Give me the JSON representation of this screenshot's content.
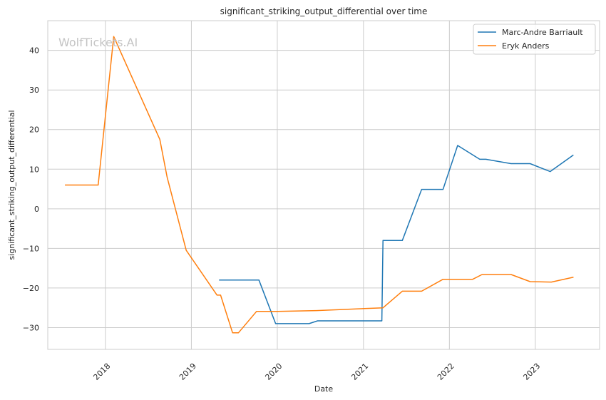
{
  "watermark": "WolfTickets.AI",
  "chart_data": {
    "type": "line",
    "title": "significant_striking_output_differential over time",
    "xlabel": "Date",
    "ylabel": "significant_striking_output_differential",
    "xlim": [
      "2017-05-01",
      "2023-10-01"
    ],
    "ylim": [
      -35.5,
      47.5
    ],
    "x_ticks": [
      "2018-01-01",
      "2019-01-01",
      "2020-01-01",
      "2021-01-01",
      "2022-01-01",
      "2023-01-01"
    ],
    "x_tick_labels": [
      "2018",
      "2019",
      "2020",
      "2021",
      "2022",
      "2023"
    ],
    "y_ticks": [
      -30,
      -20,
      -10,
      0,
      10,
      20,
      30,
      40
    ],
    "y_tick_labels": [
      "−30",
      "−20",
      "−10",
      "0",
      "10",
      "20",
      "30",
      "40"
    ],
    "grid": true,
    "legend_position": "top-right",
    "series": [
      {
        "name": "Marc-Andre Barriault",
        "color": "#1f77b4",
        "points": [
          [
            "2019-05-01",
            -18.0
          ],
          [
            "2019-10-15",
            -18.0
          ],
          [
            "2019-12-25",
            -29.0
          ],
          [
            "2020-05-15",
            -29.0
          ],
          [
            "2020-06-20",
            -28.3
          ],
          [
            "2021-03-20",
            -28.3
          ],
          [
            "2021-03-25",
            -8.0
          ],
          [
            "2021-06-15",
            -8.0
          ],
          [
            "2021-09-05",
            4.9
          ],
          [
            "2021-12-05",
            4.9
          ],
          [
            "2022-02-05",
            16.0
          ],
          [
            "2022-05-10",
            12.5
          ],
          [
            "2022-06-05",
            12.5
          ],
          [
            "2022-09-20",
            11.4
          ],
          [
            "2022-12-10",
            11.4
          ],
          [
            "2023-03-05",
            9.4
          ],
          [
            "2023-06-10",
            13.5
          ]
        ]
      },
      {
        "name": "Eryk Anders",
        "color": "#ff7f0e",
        "points": [
          [
            "2017-07-15",
            6.0
          ],
          [
            "2017-12-01",
            6.0
          ],
          [
            "2018-02-05",
            43.5
          ],
          [
            "2018-08-20",
            17.5
          ],
          [
            "2018-09-20",
            8.0
          ],
          [
            "2018-12-10",
            -10.5
          ],
          [
            "2019-04-20",
            -21.8
          ],
          [
            "2019-05-05",
            -21.8
          ],
          [
            "2019-06-25",
            -31.3
          ],
          [
            "2019-07-20",
            -31.3
          ],
          [
            "2019-10-05",
            -25.9
          ],
          [
            "2020-01-01",
            -25.9
          ],
          [
            "2020-06-15",
            -25.7
          ],
          [
            "2021-01-05",
            -25.2
          ],
          [
            "2021-03-25",
            -25.0
          ],
          [
            "2021-06-15",
            -20.8
          ],
          [
            "2021-09-05",
            -20.8
          ],
          [
            "2021-12-05",
            -17.8
          ],
          [
            "2022-04-10",
            -17.8
          ],
          [
            "2022-05-20",
            -16.6
          ],
          [
            "2022-09-20",
            -16.6
          ],
          [
            "2022-12-10",
            -18.4
          ],
          [
            "2023-03-10",
            -18.5
          ],
          [
            "2023-06-10",
            -17.3
          ]
        ]
      }
    ]
  }
}
